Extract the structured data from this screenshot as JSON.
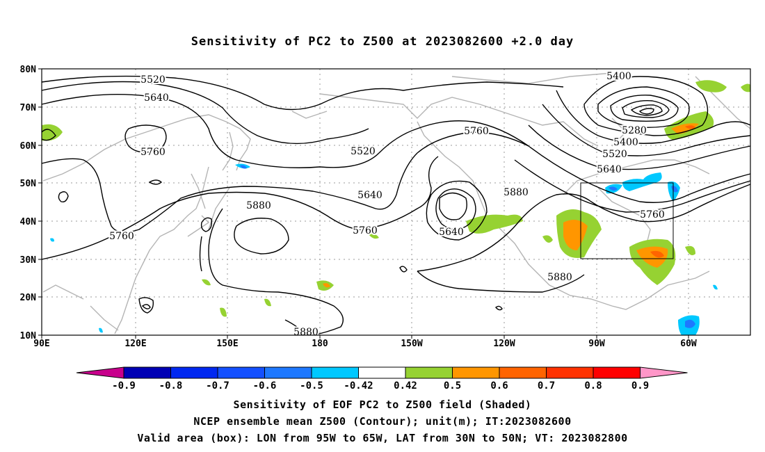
{
  "title": "Sensitivity of PC2 to Z500 at 2023082600 +2.0 day",
  "lat_labels": [
    "80N",
    "70N",
    "60N",
    "50N",
    "40N",
    "30N",
    "20N",
    "10N"
  ],
  "lon_labels": [
    "90E",
    "120E",
    "150E",
    "180",
    "150W",
    "120W",
    "90W",
    "60W"
  ],
  "contour_labels": [
    "5520",
    "5640",
    "5760",
    "5520",
    "5640",
    "5760",
    "5880",
    "5760",
    "5760",
    "5640",
    "5880",
    "5760",
    "5880",
    "5400",
    "5280",
    "5400",
    "5520",
    "5640",
    "5760",
    "5880"
  ],
  "colorbar": {
    "labels": [
      "-0.9",
      "-0.8",
      "-0.7",
      "-0.6",
      "-0.5",
      "-0.42",
      "0.42",
      "0.5",
      "0.6",
      "0.7",
      "0.8",
      "0.9"
    ],
    "colors": [
      "#c8008c",
      "#0000b4",
      "#0028f0",
      "#1450ff",
      "#1e78ff",
      "#00c8ff",
      "#ffffff",
      "#96d232",
      "#ff9600",
      "#ff6400",
      "#ff3200",
      "#ff0000",
      "#ff96c8"
    ]
  },
  "captions": [
    "Sensitivity of EOF PC2 to Z500 field (Shaded)",
    "NCEP ensemble mean Z500 (Contour); unit(m); IT:2023082600",
    "Valid area (box): LON from 95W to 65W, LAT from 30N to 50N; VT: 2023082800"
  ]
}
